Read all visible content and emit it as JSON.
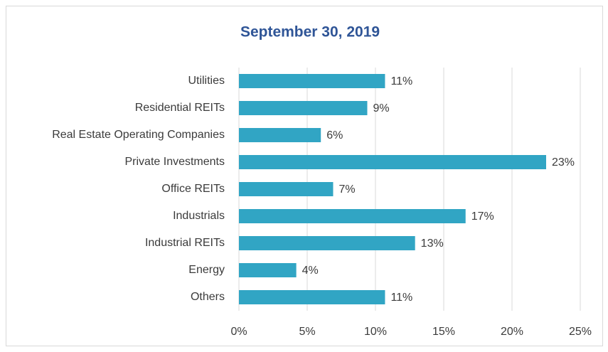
{
  "chart_data": {
    "type": "bar",
    "orientation": "horizontal",
    "title": "September 30, 2019",
    "categories": [
      "Utilities",
      "Residential REITs",
      "Real Estate Operating Companies",
      "Private Investments",
      "Office REITs",
      "Industrials",
      "Industrial REITs",
      "Energy",
      "Others"
    ],
    "values": [
      10.7,
      9.4,
      6.0,
      22.5,
      6.9,
      16.6,
      12.9,
      4.2,
      10.7
    ],
    "value_labels": [
      "11%",
      "9%",
      "6%",
      "23%",
      "7%",
      "17%",
      "13%",
      "4%",
      "11%"
    ],
    "color": "#31a5c4",
    "xlim": [
      0,
      25
    ],
    "xticks": [
      {
        "value": 0,
        "label": "0%"
      },
      {
        "value": 5,
        "label": "5%"
      },
      {
        "value": 10,
        "label": "10%"
      },
      {
        "value": 15,
        "label": "15%"
      },
      {
        "value": 20,
        "label": "20%"
      },
      {
        "value": 25,
        "label": "25%"
      }
    ],
    "grid": true
  }
}
